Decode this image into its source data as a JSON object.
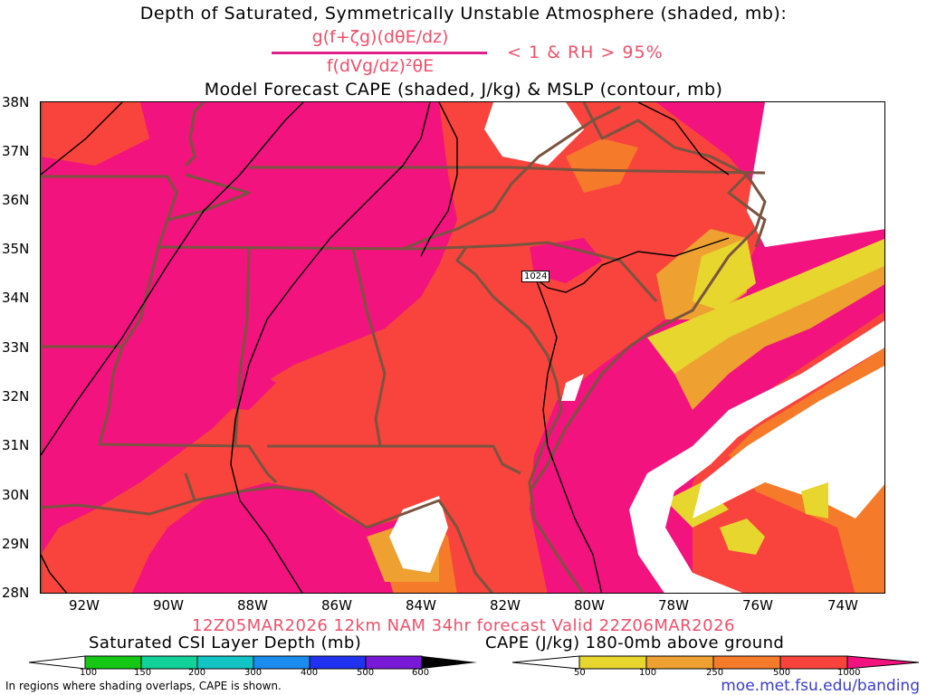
{
  "title": {
    "line1": "Depth of Saturated, Symmetrically Unstable Atmosphere (shaded, mb):",
    "numerator": "g(f+ζg)(dθE/dz)",
    "denominator": "f(dVg/dz)²θE",
    "condition": "< 1 & RH > 95%",
    "line3": "Model Forecast CAPE (shaded, J/kg) & MSLP (contour, mb)"
  },
  "map": {
    "lat_labels": [
      "38N",
      "37N",
      "36N",
      "35N",
      "34N",
      "33N",
      "32N",
      "31N",
      "30N",
      "29N",
      "28N"
    ],
    "lon_labels": [
      "92W",
      "90W",
      "88W",
      "86W",
      "84W",
      "82W",
      "80W",
      "78W",
      "76W",
      "74W"
    ],
    "isobar_label": "1024",
    "colors": {
      "cape_1000": "#f2137e",
      "cape_500": "#f8443c",
      "cape_250": "#f57a2a",
      "cape_100": "#eea030",
      "cape_50": "#e6d62e",
      "border": "#7a5440",
      "isobar": "#000000"
    }
  },
  "valid_line": "12Z05MAR2026 12km NAM 34hr forecast Valid 22Z06MAR2026",
  "colorbars": {
    "csi": {
      "title": "Saturated CSI Layer Depth (mb)",
      "ticks": [
        "100",
        "150",
        "200",
        "300",
        "400",
        "500",
        "600"
      ],
      "colors": [
        "#16c816",
        "#12d29a",
        "#12c4c4",
        "#1a8cf0",
        "#2032f0",
        "#7a18d8"
      ]
    },
    "cape": {
      "title": "CAPE (J/kg) 180-0mb above ground",
      "ticks": [
        "50",
        "100",
        "250",
        "500",
        "1000"
      ],
      "colors": [
        "#e6d62e",
        "#eea030",
        "#f57a2a",
        "#f8443c",
        "#f2137e"
      ]
    }
  },
  "note": "In regions where shading overlaps, CAPE is shown.",
  "url": "moe.met.fsu.edu/banding"
}
